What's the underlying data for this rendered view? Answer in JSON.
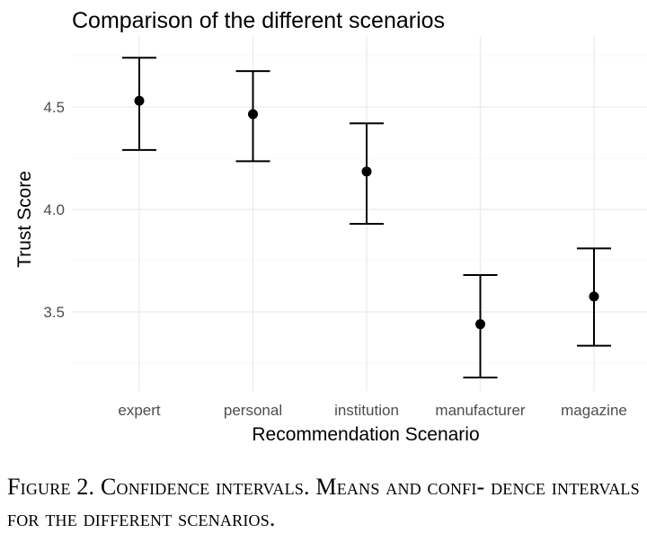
{
  "chart_data": {
    "type": "errorbar",
    "title": "Comparison of the different scenarios",
    "xlabel": "Recommendation Scenario",
    "ylabel": "Trust Score",
    "categories": [
      "expert",
      "personal",
      "institution",
      "manufacturer",
      "magazine"
    ],
    "means": [
      4.53,
      4.465,
      4.185,
      3.44,
      3.575
    ],
    "lower": [
      4.29,
      4.235,
      3.93,
      3.18,
      3.335
    ],
    "upper": [
      4.74,
      4.675,
      4.42,
      3.68,
      3.81
    ],
    "ylim": [
      3.13,
      4.82
    ],
    "yticks": [
      3.5,
      4.0,
      4.5
    ],
    "ytick_labels": [
      "3.5",
      "4.0",
      "4.5"
    ],
    "grid": true
  },
  "caption": {
    "text": "Figure 2. Confidence intervals. Means and confi- dence intervals for the different scenarios."
  }
}
